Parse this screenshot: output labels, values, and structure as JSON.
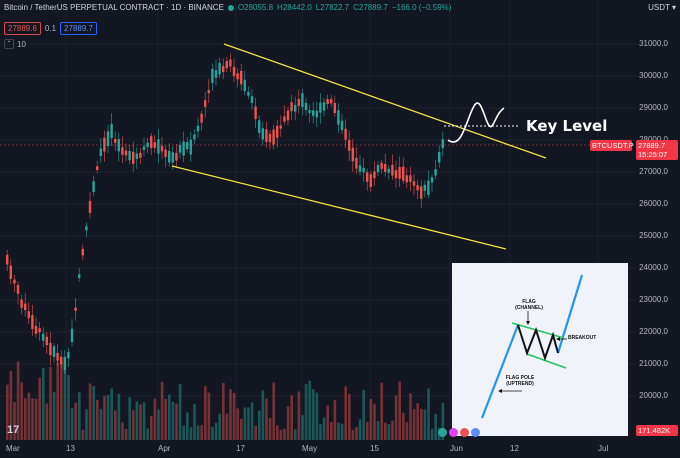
{
  "header": {
    "symbol_title": "Bitcoin / TetherUS PERPETUAL CONTRACT · 1D · BINANCE",
    "open": "O28055.8",
    "high": "H28442.0",
    "low": "L27822.7",
    "close": "C27889.7",
    "change": "−166.0 (−0.59%)"
  },
  "trade": {
    "sell_price": "27889.6",
    "spread": "0.1",
    "buy_price": "27889.7"
  },
  "volume_toggle": {
    "chevron": "⌃",
    "count": "10"
  },
  "currency": "USDT",
  "price_axis": {
    "ticks": [
      "31000.0",
      "30000.0",
      "29000.0",
      "28000.0",
      "27000.0",
      "26000.0",
      "25000.0",
      "24000.0",
      "23000.0",
      "22000.0",
      "21000.0",
      "20000.0"
    ],
    "symbol_tag": "BTCUSDT.P",
    "last_price": "27889.7",
    "countdown": "15:25:07",
    "volume_tag": "171.482K"
  },
  "time_axis": [
    "Mar",
    "13",
    "Apr",
    "17",
    "May",
    "15",
    "Jun",
    "12",
    "Jul"
  ],
  "annotation": {
    "key_level": "Key Level"
  },
  "inset": {
    "flag": "FLAG",
    "channel": "(CHANNEL)",
    "breakout": "BREAKOUT",
    "flag_pole": "FLAG POLE",
    "uptrend": "(UPTREND)"
  },
  "logo": "17",
  "colors": {
    "up": "#26a69a",
    "down": "#ef5350",
    "trend": "#f5e342",
    "background": "#131722"
  }
}
